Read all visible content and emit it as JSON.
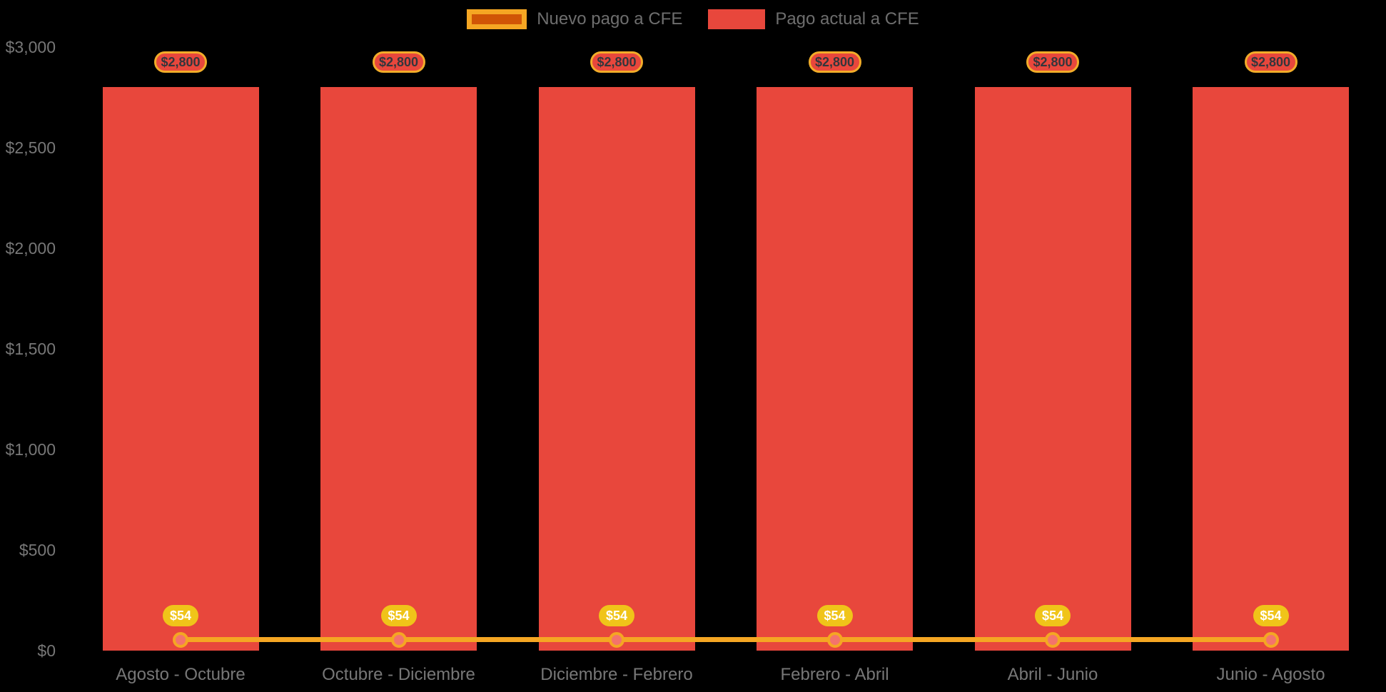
{
  "colors": {
    "background": "#000000",
    "bar_red": "#E8473C",
    "orange": "#F5A623",
    "orange_dark": "#D05506",
    "gold": "#F2AC29",
    "yellow": "#F0C419",
    "salmon": "#F4736C",
    "axis_text": "#777777",
    "legend_text": "#6E6E6E",
    "badge_text": "#33363C",
    "badge54_text": "#FFFFFF"
  },
  "legend": {
    "items": [
      {
        "id": "nuevo-pago",
        "label": "Nuevo pago a CFE"
      },
      {
        "id": "pago-actual",
        "label": "Pago actual a CFE"
      }
    ]
  },
  "chart_data": {
    "type": "bar",
    "title": "",
    "xlabel": "",
    "ylabel": "",
    "grid": false,
    "legend_position": "top-center",
    "ylim": [
      0,
      3000
    ],
    "categories": [
      "Agosto - Octubre",
      "Octubre - Diciembre",
      "Diciembre - Febrero",
      "Febrero - Abril",
      "Abril - Junio",
      "Junio - Agosto"
    ],
    "yticks": [
      {
        "value": 3000,
        "label": "$3,000"
      },
      {
        "value": 2500,
        "label": "$2,500"
      },
      {
        "value": 2000,
        "label": "$2,000"
      },
      {
        "value": 1500,
        "label": "$1,500"
      },
      {
        "value": 1000,
        "label": "$1,000"
      },
      {
        "value": 500,
        "label": "$500"
      },
      {
        "value": 0,
        "label": "$0"
      }
    ],
    "series": [
      {
        "name": "Nuevo pago a CFE",
        "type": "line",
        "color": "#F5A623",
        "values": [
          54,
          54,
          54,
          54,
          54,
          54
        ],
        "labels": [
          "$54",
          "$54",
          "$54",
          "$54",
          "$54",
          "$54"
        ]
      },
      {
        "name": "Pago actual a CFE",
        "type": "bar",
        "color": "#E8473C",
        "values": [
          2800,
          2800,
          2800,
          2800,
          2800,
          2800
        ],
        "labels": [
          "$2,800",
          "$2,800",
          "$2,800",
          "$2,800",
          "$2,800",
          "$2,800"
        ]
      }
    ]
  }
}
